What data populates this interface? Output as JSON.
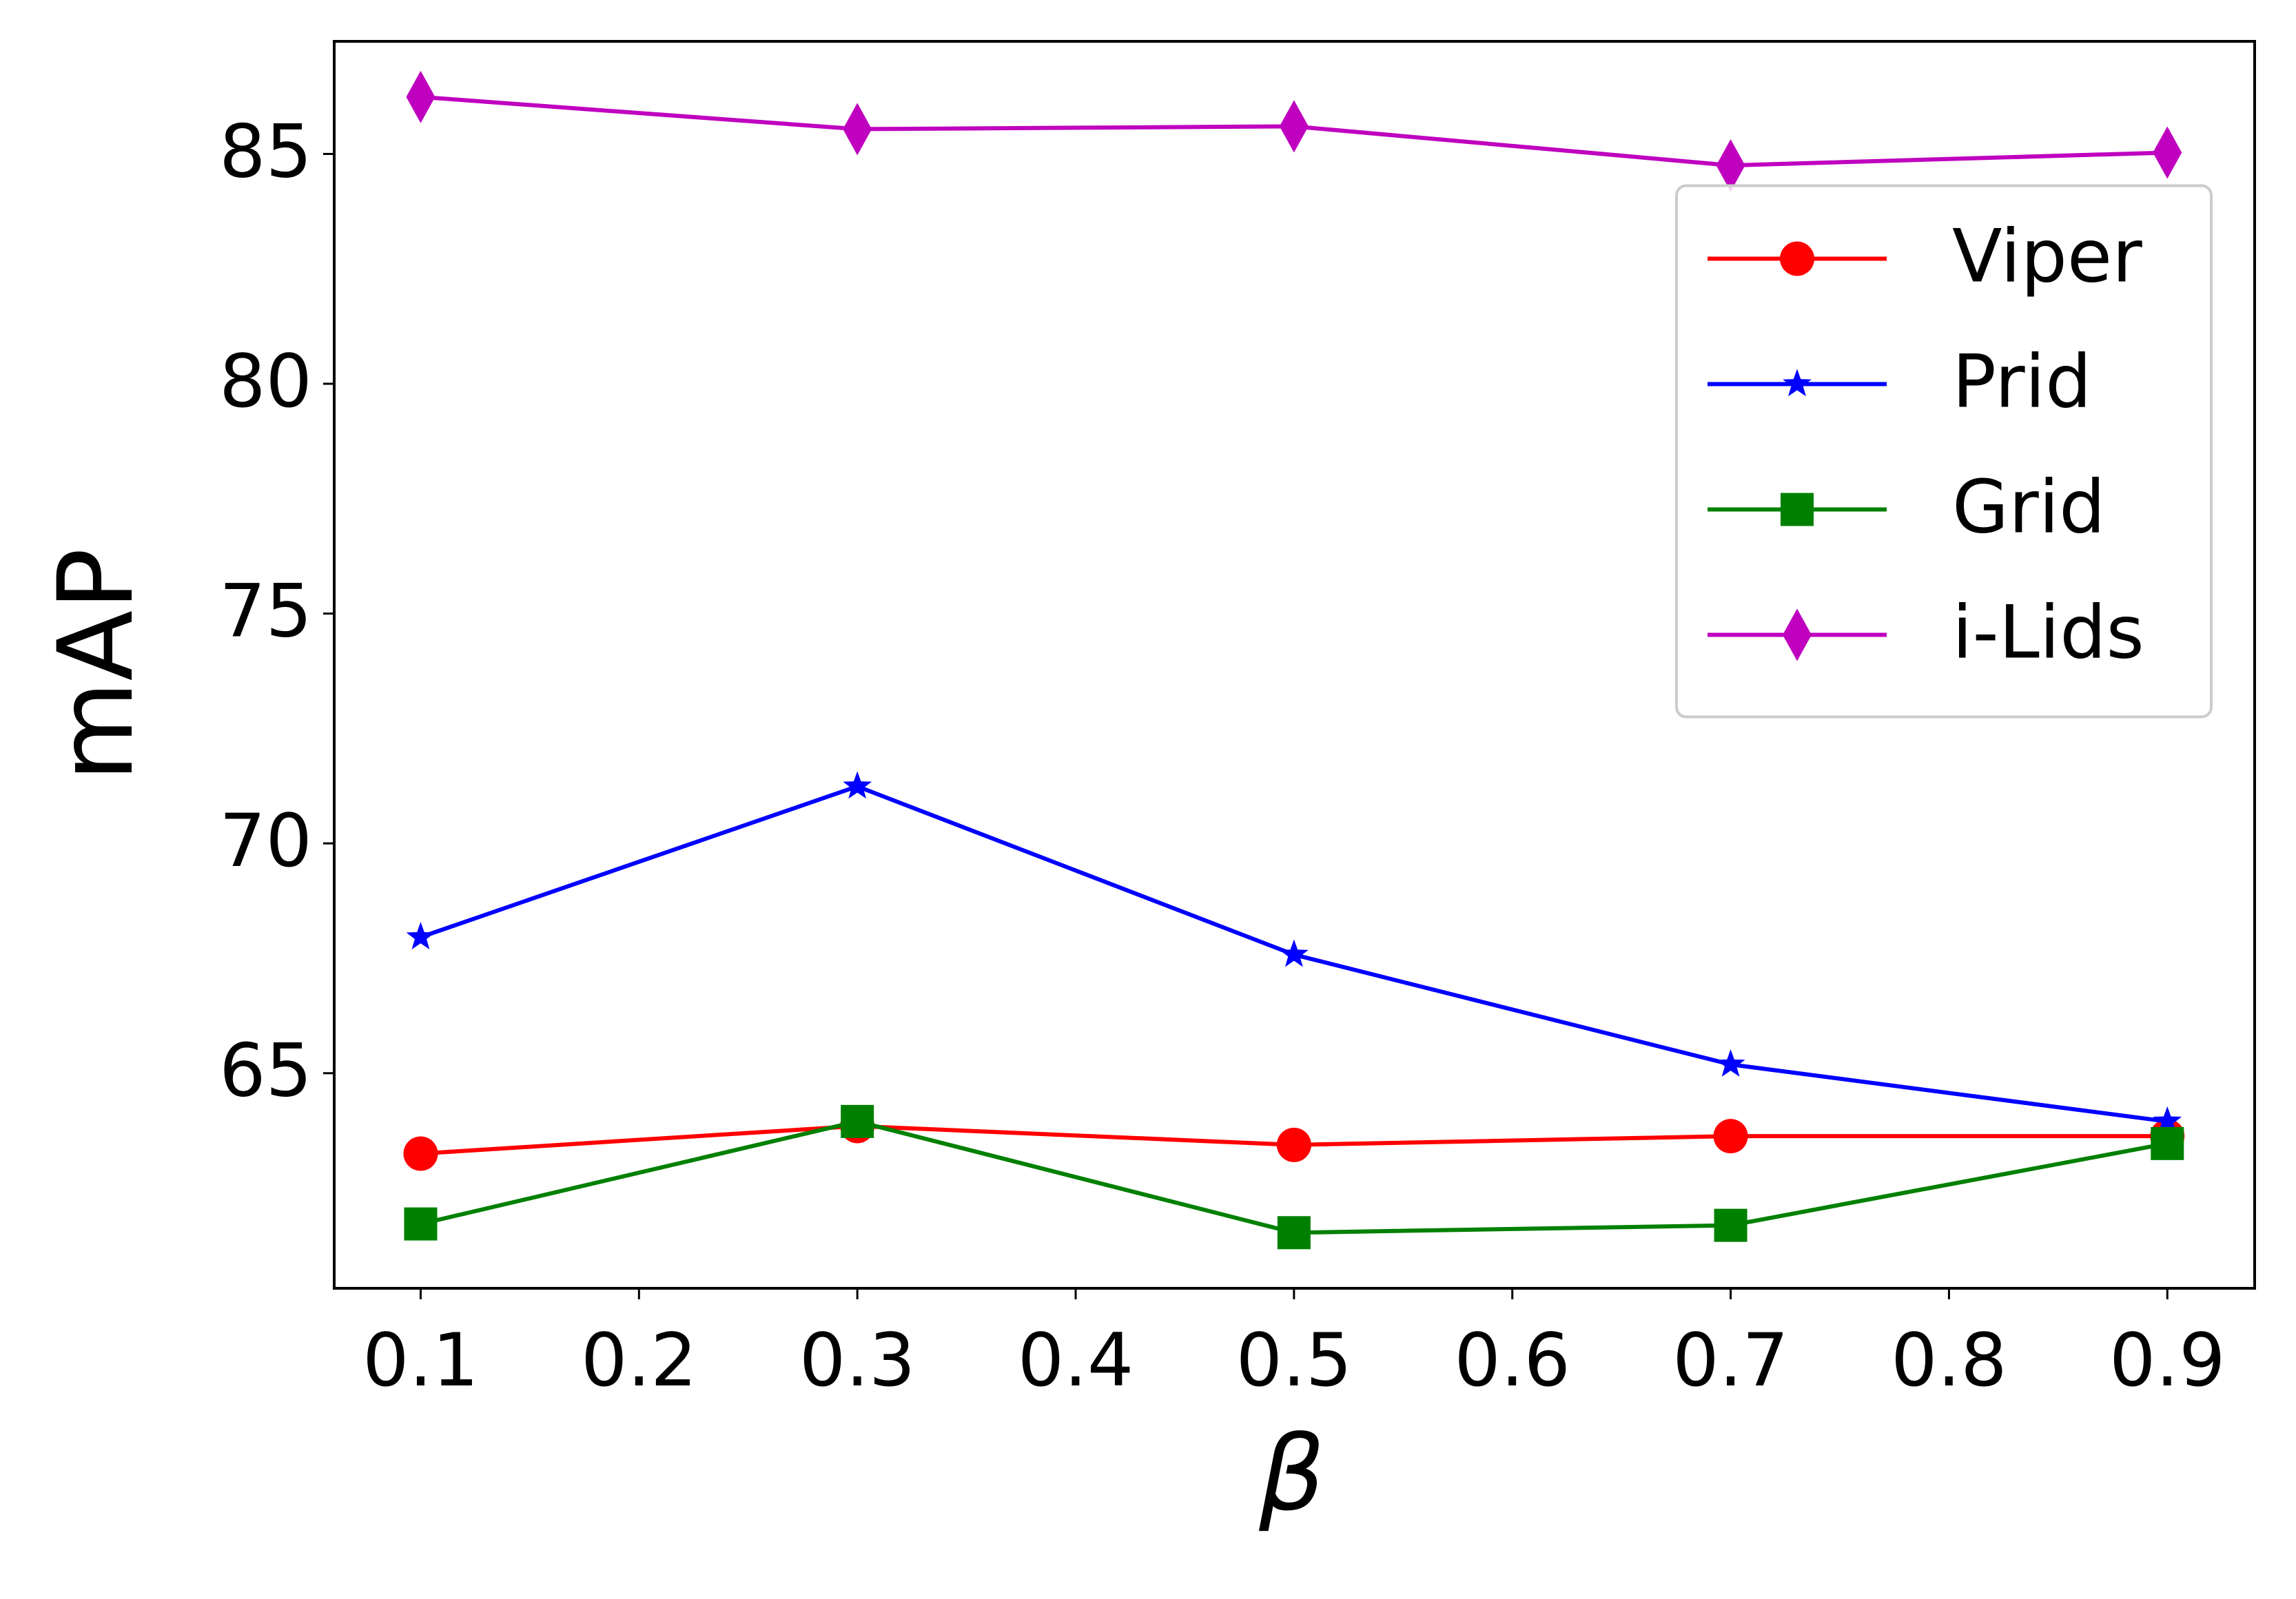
{
  "chart_data": {
    "type": "line",
    "x_label": "β",
    "y_label": "mAP",
    "x": [
      0.1,
      0.3,
      0.5,
      0.7,
      0.9
    ],
    "series": [
      {
        "name": "Viper",
        "color": "#ff0000",
        "marker": "circle",
        "values": [
          63.25,
          63.85,
          63.44,
          63.63,
          63.63
        ]
      },
      {
        "name": "Prid",
        "color": "#0000ff",
        "marker": "star",
        "values": [
          67.96,
          71.24,
          67.58,
          65.19,
          63.95
        ]
      },
      {
        "name": "Grid",
        "color": "#008000",
        "marker": "square",
        "values": [
          61.72,
          63.95,
          61.53,
          61.69,
          63.47
        ]
      },
      {
        "name": "i-Lids",
        "color": "#bf00bf",
        "marker": "diamond",
        "values": [
          86.24,
          85.54,
          85.6,
          84.75,
          85.03
        ]
      }
    ],
    "xlim": [
      0.0604,
      0.94
    ],
    "ylim": [
      60.32,
      87.45
    ],
    "xticks": [
      0.1,
      0.2,
      0.3,
      0.4,
      0.5,
      0.6,
      0.7,
      0.8,
      0.9
    ],
    "yticks": [
      65,
      70,
      75,
      80,
      85
    ],
    "legend": "center right",
    "grid": false
  }
}
